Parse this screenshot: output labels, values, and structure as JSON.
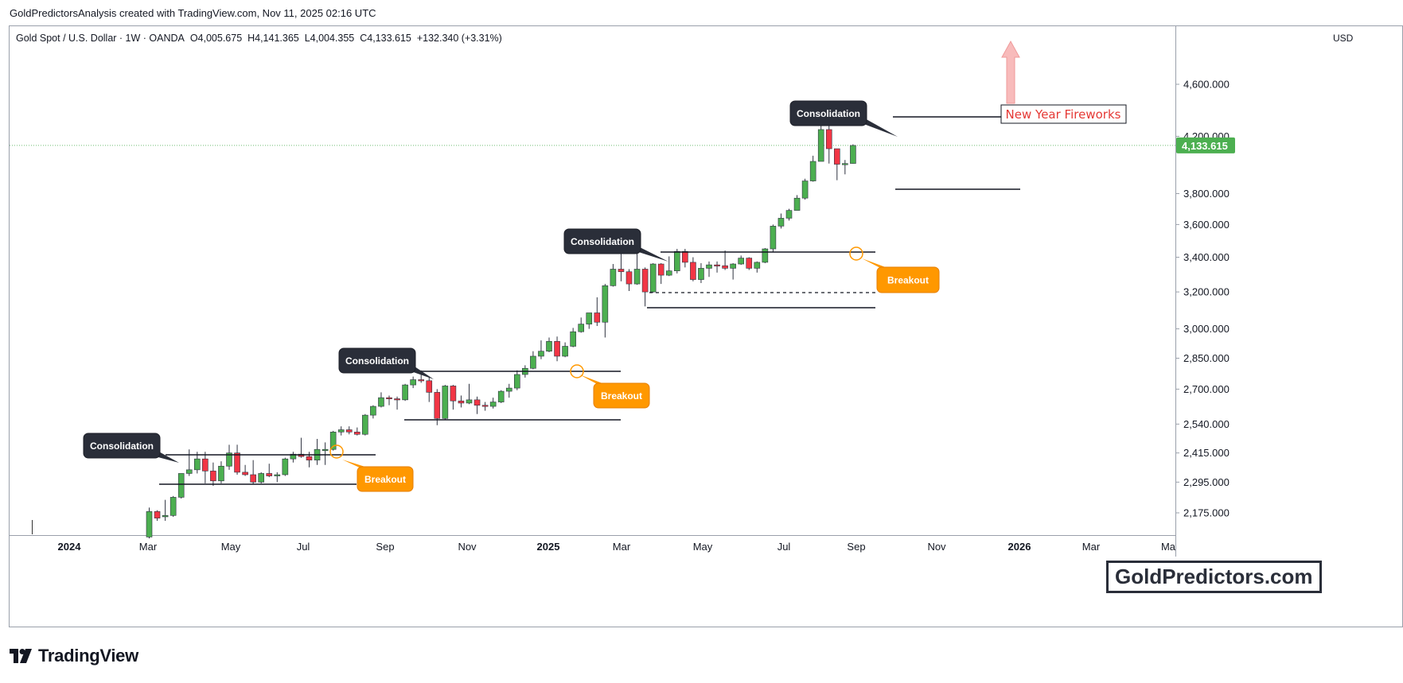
{
  "header": {
    "credit": "GoldPredictorsAnalysis created with TradingView.com, Nov 11, 2025 02:16 UTC",
    "symbol": "Gold Spot / U.S. Dollar · 1W · OANDA",
    "open": "O4,005.675",
    "high": "H4,141.365",
    "low": "L4,004.355",
    "close": "C4,133.615",
    "change": "+132.340 (+3.31%)"
  },
  "price_axis": {
    "currency": "USD",
    "last_price_label": "4,133.615"
  },
  "brand": {
    "name": "TradingView"
  },
  "watermark": {
    "text": "GoldPredictors.com"
  },
  "annotations": {
    "consolidation": "Consolidation",
    "breakout": "Breakout",
    "target": "New Year Fireworks"
  },
  "colors": {
    "up": "#4caf50",
    "down": "#f23645",
    "callout_dark": "#2a2e39",
    "callout_orange": "#ff9800",
    "target_text": "#e53935",
    "last_price_bg": "#4caf50",
    "arrow": "#f8bbbb"
  },
  "chart_data": {
    "type": "candlestick",
    "scale": "log",
    "timeframe": "1W",
    "x_ticks": [
      "2024",
      "Mar",
      "May",
      "Jul",
      "Sep",
      "Nov",
      "2025",
      "Mar",
      "May",
      "Jul",
      "Sep",
      "Nov",
      "2026",
      "Mar",
      "Ma"
    ],
    "y_ticks": [
      {
        "v": 2175,
        "label": "2,175.000"
      },
      {
        "v": 2295,
        "label": "2,295.000"
      },
      {
        "v": 2415,
        "label": "2,415.000"
      },
      {
        "v": 2540,
        "label": "2,540.000"
      },
      {
        "v": 2700,
        "label": "2,700.000"
      },
      {
        "v": 2850,
        "label": "2,850.000"
      },
      {
        "v": 3000,
        "label": "3,000.000"
      },
      {
        "v": 3200,
        "label": "3,200.000"
      },
      {
        "v": 3400,
        "label": "3,400.000"
      },
      {
        "v": 3600,
        "label": "3,600.000"
      },
      {
        "v": 3800,
        "label": "3,800.000"
      },
      {
        "v": 4200,
        "label": "4,200.000"
      },
      {
        "v": 4600,
        "label": "4,600.000"
      }
    ],
    "last_price": 4133.615,
    "candles": [
      {
        "d": "2024-03-04",
        "o": 2085,
        "h": 2195,
        "l": 2080,
        "c": 2180
      },
      {
        "d": "2024-03-11",
        "o": 2180,
        "h": 2185,
        "l": 2145,
        "c": 2155
      },
      {
        "d": "2024-03-18",
        "o": 2160,
        "h": 2225,
        "l": 2145,
        "c": 2165
      },
      {
        "d": "2024-03-25",
        "o": 2165,
        "h": 2240,
        "l": 2160,
        "c": 2235
      },
      {
        "d": "2024-04-01",
        "o": 2235,
        "h": 2330,
        "l": 2230,
        "c": 2330
      },
      {
        "d": "2024-04-08",
        "o": 2330,
        "h": 2430,
        "l": 2320,
        "c": 2345
      },
      {
        "d": "2024-04-15",
        "o": 2345,
        "h": 2420,
        "l": 2330,
        "c": 2390
      },
      {
        "d": "2024-04-22",
        "o": 2390,
        "h": 2420,
        "l": 2290,
        "c": 2340
      },
      {
        "d": "2024-04-29",
        "o": 2340,
        "h": 2375,
        "l": 2280,
        "c": 2300
      },
      {
        "d": "2024-05-06",
        "o": 2300,
        "h": 2380,
        "l": 2290,
        "c": 2360
      },
      {
        "d": "2024-05-13",
        "o": 2360,
        "h": 2450,
        "l": 2345,
        "c": 2415
      },
      {
        "d": "2024-05-20",
        "o": 2415,
        "h": 2450,
        "l": 2325,
        "c": 2335
      },
      {
        "d": "2024-05-27",
        "o": 2335,
        "h": 2365,
        "l": 2320,
        "c": 2325
      },
      {
        "d": "2024-06-03",
        "o": 2325,
        "h": 2385,
        "l": 2285,
        "c": 2295
      },
      {
        "d": "2024-06-10",
        "o": 2295,
        "h": 2335,
        "l": 2290,
        "c": 2330
      },
      {
        "d": "2024-06-17",
        "o": 2330,
        "h": 2370,
        "l": 2315,
        "c": 2320
      },
      {
        "d": "2024-06-24",
        "o": 2320,
        "h": 2335,
        "l": 2295,
        "c": 2325
      },
      {
        "d": "2024-07-01",
        "o": 2325,
        "h": 2395,
        "l": 2320,
        "c": 2390
      },
      {
        "d": "2024-07-08",
        "o": 2390,
        "h": 2420,
        "l": 2375,
        "c": 2410
      },
      {
        "d": "2024-07-15",
        "o": 2410,
        "h": 2480,
        "l": 2395,
        "c": 2400
      },
      {
        "d": "2024-07-22",
        "o": 2400,
        "h": 2420,
        "l": 2355,
        "c": 2385
      },
      {
        "d": "2024-07-29",
        "o": 2385,
        "h": 2475,
        "l": 2365,
        "c": 2430
      },
      {
        "d": "2024-08-05",
        "o": 2430,
        "h": 2460,
        "l": 2365,
        "c": 2430
      },
      {
        "d": "2024-08-12",
        "o": 2430,
        "h": 2510,
        "l": 2425,
        "c": 2505
      },
      {
        "d": "2024-08-19",
        "o": 2505,
        "h": 2530,
        "l": 2490,
        "c": 2515
      },
      {
        "d": "2024-08-26",
        "o": 2515,
        "h": 2530,
        "l": 2495,
        "c": 2505
      },
      {
        "d": "2024-09-02",
        "o": 2505,
        "h": 2525,
        "l": 2490,
        "c": 2495
      },
      {
        "d": "2024-09-09",
        "o": 2495,
        "h": 2585,
        "l": 2490,
        "c": 2580
      },
      {
        "d": "2024-09-16",
        "o": 2580,
        "h": 2625,
        "l": 2565,
        "c": 2620
      },
      {
        "d": "2024-09-23",
        "o": 2620,
        "h": 2685,
        "l": 2615,
        "c": 2660
      },
      {
        "d": "2024-09-30",
        "o": 2660,
        "h": 2670,
        "l": 2625,
        "c": 2655
      },
      {
        "d": "2024-10-07",
        "o": 2655,
        "h": 2665,
        "l": 2605,
        "c": 2650
      },
      {
        "d": "2024-10-14",
        "o": 2650,
        "h": 2725,
        "l": 2645,
        "c": 2720
      },
      {
        "d": "2024-10-21",
        "o": 2720,
        "h": 2760,
        "l": 2705,
        "c": 2745
      },
      {
        "d": "2024-10-28",
        "o": 2745,
        "h": 2790,
        "l": 2730,
        "c": 2740
      },
      {
        "d": "2024-11-04",
        "o": 2740,
        "h": 2760,
        "l": 2640,
        "c": 2685
      },
      {
        "d": "2024-11-11",
        "o": 2685,
        "h": 2700,
        "l": 2535,
        "c": 2565
      },
      {
        "d": "2024-11-18",
        "o": 2565,
        "h": 2720,
        "l": 2560,
        "c": 2715
      },
      {
        "d": "2024-11-25",
        "o": 2715,
        "h": 2720,
        "l": 2605,
        "c": 2645
      },
      {
        "d": "2024-12-02",
        "o": 2645,
        "h": 2670,
        "l": 2615,
        "c": 2635
      },
      {
        "d": "2024-12-09",
        "o": 2635,
        "h": 2725,
        "l": 2630,
        "c": 2650
      },
      {
        "d": "2024-12-16",
        "o": 2650,
        "h": 2665,
        "l": 2585,
        "c": 2625
      },
      {
        "d": "2024-12-23",
        "o": 2625,
        "h": 2640,
        "l": 2600,
        "c": 2620
      },
      {
        "d": "2024-12-30",
        "o": 2620,
        "h": 2660,
        "l": 2610,
        "c": 2640
      },
      {
        "d": "2025-01-06",
        "o": 2640,
        "h": 2695,
        "l": 2635,
        "c": 2690
      },
      {
        "d": "2025-01-13",
        "o": 2690,
        "h": 2725,
        "l": 2660,
        "c": 2705
      },
      {
        "d": "2025-01-20",
        "o": 2705,
        "h": 2790,
        "l": 2695,
        "c": 2770
      },
      {
        "d": "2025-01-27",
        "o": 2770,
        "h": 2815,
        "l": 2755,
        "c": 2800
      },
      {
        "d": "2025-02-03",
        "o": 2800,
        "h": 2885,
        "l": 2795,
        "c": 2860
      },
      {
        "d": "2025-02-10",
        "o": 2860,
        "h": 2940,
        "l": 2845,
        "c": 2885
      },
      {
        "d": "2025-02-17",
        "o": 2885,
        "h": 2955,
        "l": 2880,
        "c": 2935
      },
      {
        "d": "2025-02-24",
        "o": 2935,
        "h": 2960,
        "l": 2835,
        "c": 2860
      },
      {
        "d": "2025-03-03",
        "o": 2860,
        "h": 2930,
        "l": 2855,
        "c": 2910
      },
      {
        "d": "2025-03-10",
        "o": 2910,
        "h": 3005,
        "l": 2905,
        "c": 2985
      },
      {
        "d": "2025-03-17",
        "o": 2985,
        "h": 3060,
        "l": 2980,
        "c": 3025
      },
      {
        "d": "2025-03-24",
        "o": 3025,
        "h": 3085,
        "l": 3000,
        "c": 3085
      },
      {
        "d": "2025-03-31",
        "o": 3085,
        "h": 3170,
        "l": 3015,
        "c": 3035
      },
      {
        "d": "2025-04-07",
        "o": 3035,
        "h": 3245,
        "l": 2955,
        "c": 3235
      },
      {
        "d": "2025-04-14",
        "o": 3235,
        "h": 3360,
        "l": 3230,
        "c": 3330
      },
      {
        "d": "2025-04-21",
        "o": 3330,
        "h": 3500,
        "l": 3260,
        "c": 3315
      },
      {
        "d": "2025-04-28",
        "o": 3315,
        "h": 3330,
        "l": 3205,
        "c": 3245
      },
      {
        "d": "2025-05-05",
        "o": 3245,
        "h": 3435,
        "l": 3240,
        "c": 3330
      },
      {
        "d": "2025-05-12",
        "o": 3330,
        "h": 3340,
        "l": 3120,
        "c": 3200
      },
      {
        "d": "2025-05-19",
        "o": 3200,
        "h": 3365,
        "l": 3195,
        "c": 3360
      },
      {
        "d": "2025-05-26",
        "o": 3360,
        "h": 3365,
        "l": 3245,
        "c": 3295
      },
      {
        "d": "2025-06-02",
        "o": 3295,
        "h": 3405,
        "l": 3290,
        "c": 3320
      },
      {
        "d": "2025-06-09",
        "o": 3320,
        "h": 3450,
        "l": 3305,
        "c": 3435
      },
      {
        "d": "2025-06-16",
        "o": 3435,
        "h": 3450,
        "l": 3340,
        "c": 3370
      },
      {
        "d": "2025-06-23",
        "o": 3370,
        "h": 3400,
        "l": 3260,
        "c": 3270
      },
      {
        "d": "2025-06-30",
        "o": 3270,
        "h": 3365,
        "l": 3250,
        "c": 3335
      },
      {
        "d": "2025-07-07",
        "o": 3335,
        "h": 3375,
        "l": 3285,
        "c": 3355
      },
      {
        "d": "2025-07-14",
        "o": 3355,
        "h": 3375,
        "l": 3310,
        "c": 3350
      },
      {
        "d": "2025-07-21",
        "o": 3350,
        "h": 3440,
        "l": 3325,
        "c": 3335
      },
      {
        "d": "2025-07-28",
        "o": 3335,
        "h": 3365,
        "l": 3270,
        "c": 3360
      },
      {
        "d": "2025-08-04",
        "o": 3360,
        "h": 3410,
        "l": 3355,
        "c": 3395
      },
      {
        "d": "2025-08-11",
        "o": 3395,
        "h": 3400,
        "l": 3325,
        "c": 3335
      },
      {
        "d": "2025-08-18",
        "o": 3335,
        "h": 3375,
        "l": 3310,
        "c": 3370
      },
      {
        "d": "2025-08-25",
        "o": 3370,
        "h": 3455,
        "l": 3365,
        "c": 3450
      },
      {
        "d": "2025-09-01",
        "o": 3450,
        "h": 3600,
        "l": 3430,
        "c": 3590
      },
      {
        "d": "2025-09-08",
        "o": 3590,
        "h": 3670,
        "l": 3575,
        "c": 3640
      },
      {
        "d": "2025-09-15",
        "o": 3640,
        "h": 3700,
        "l": 3625,
        "c": 3690
      },
      {
        "d": "2025-09-22",
        "o": 3690,
        "h": 3790,
        "l": 3690,
        "c": 3770
      },
      {
        "d": "2025-09-29",
        "o": 3770,
        "h": 3900,
        "l": 3760,
        "c": 3885
      },
      {
        "d": "2025-10-06",
        "o": 3885,
        "h": 4060,
        "l": 3880,
        "c": 4020
      },
      {
        "d": "2025-10-13",
        "o": 4020,
        "h": 4380,
        "l": 4020,
        "c": 4250
      },
      {
        "d": "2025-10-20",
        "o": 4250,
        "h": 4380,
        "l": 4005,
        "c": 4110
      },
      {
        "d": "2025-10-27",
        "o": 4110,
        "h": 4100,
        "l": 3890,
        "c": 4000
      },
      {
        "d": "2025-11-03",
        "o": 4000,
        "h": 4030,
        "l": 3930,
        "c": 4005
      },
      {
        "d": "2025-11-10",
        "o": 4005.675,
        "h": 4141.365,
        "l": 4004.355,
        "c": 4133.615
      }
    ]
  }
}
